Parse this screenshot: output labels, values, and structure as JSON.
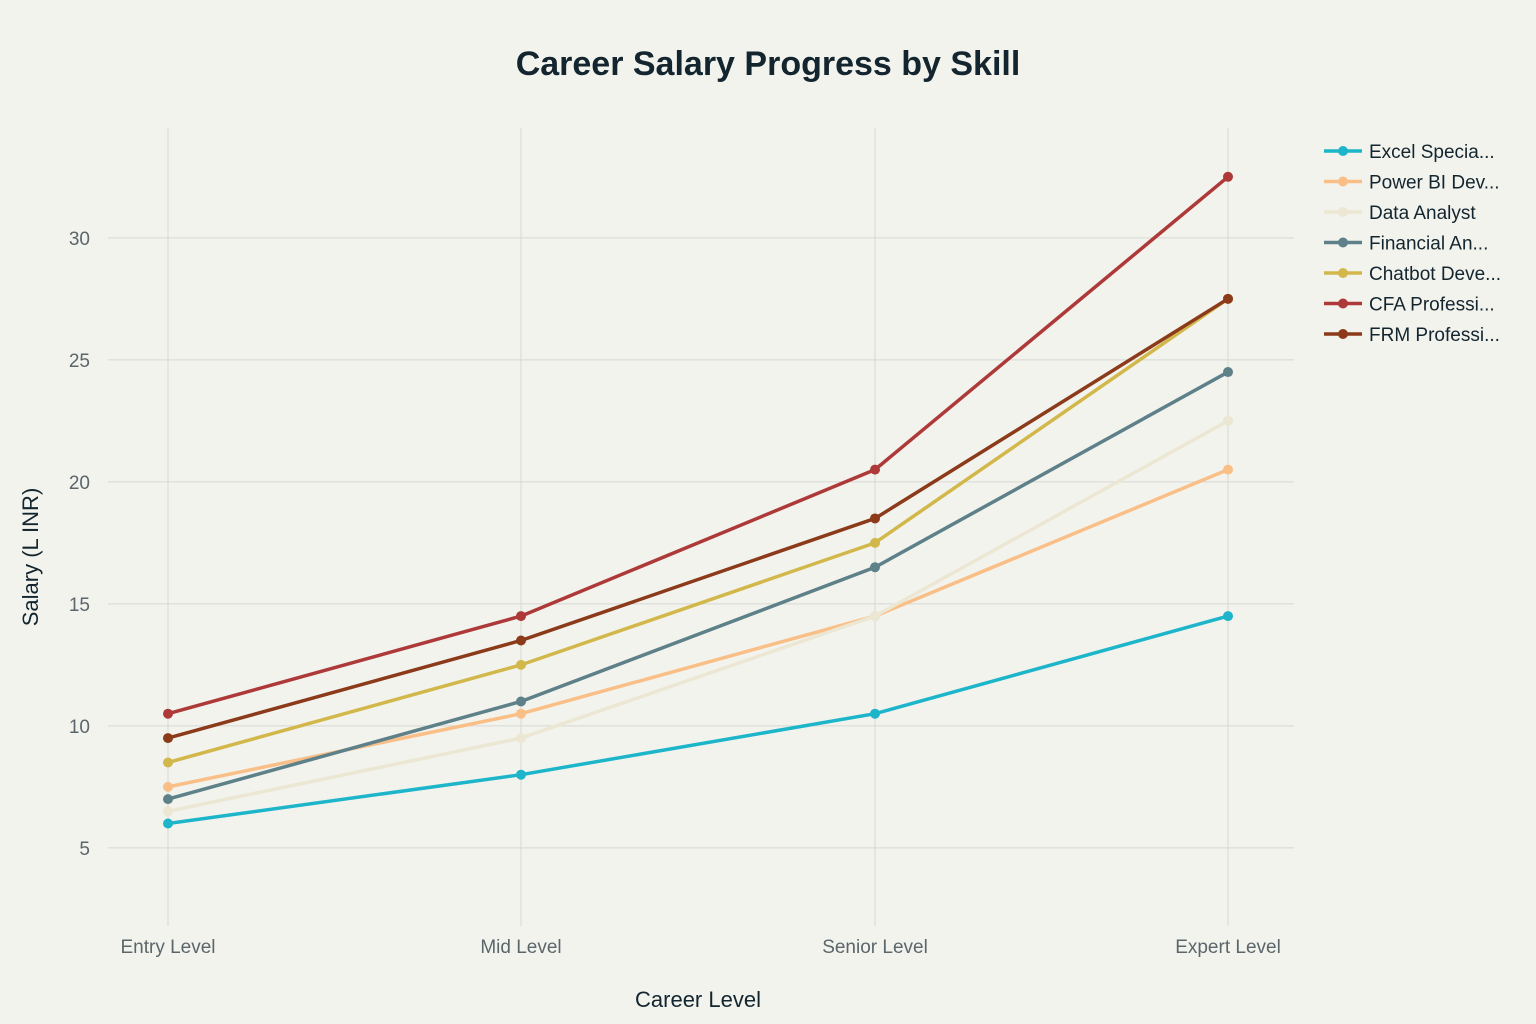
{
  "chart_data": {
    "type": "line",
    "title": "Career Salary Progress by Skill",
    "xlabel": "Career Level",
    "ylabel": "Salary (L INR)",
    "categories": [
      "Entry Level",
      "Mid Level",
      "Senior Level",
      "Expert Level"
    ],
    "ylim": [
      1.8,
      34.5
    ],
    "yticks": [
      5,
      10,
      15,
      20,
      25,
      30
    ],
    "grid": true,
    "legend_position": "right",
    "series": [
      {
        "name": "Excel Specia...",
        "color": "#1db5c9",
        "values": [
          6.0,
          8.0,
          10.5,
          14.5
        ]
      },
      {
        "name": "Power BI Dev...",
        "color": "#f9bf87",
        "values": [
          7.5,
          10.5,
          14.5,
          20.5
        ]
      },
      {
        "name": "Data Analyst",
        "color": "#ebe7d3",
        "values": [
          6.5,
          9.5,
          14.5,
          22.5
        ]
      },
      {
        "name": "Financial An...",
        "color": "#5e8089",
        "values": [
          7.0,
          11.0,
          16.5,
          24.5
        ]
      },
      {
        "name": "Chatbot Deve...",
        "color": "#d2b84b",
        "values": [
          8.5,
          12.5,
          17.5,
          27.5
        ]
      },
      {
        "name": "CFA Professi...",
        "color": "#ad3a39",
        "values": [
          10.5,
          14.5,
          20.5,
          32.5
        ]
      },
      {
        "name": "FRM Professi...",
        "color": "#8b3a1a",
        "values": [
          9.5,
          13.5,
          18.5,
          27.5
        ]
      }
    ]
  }
}
